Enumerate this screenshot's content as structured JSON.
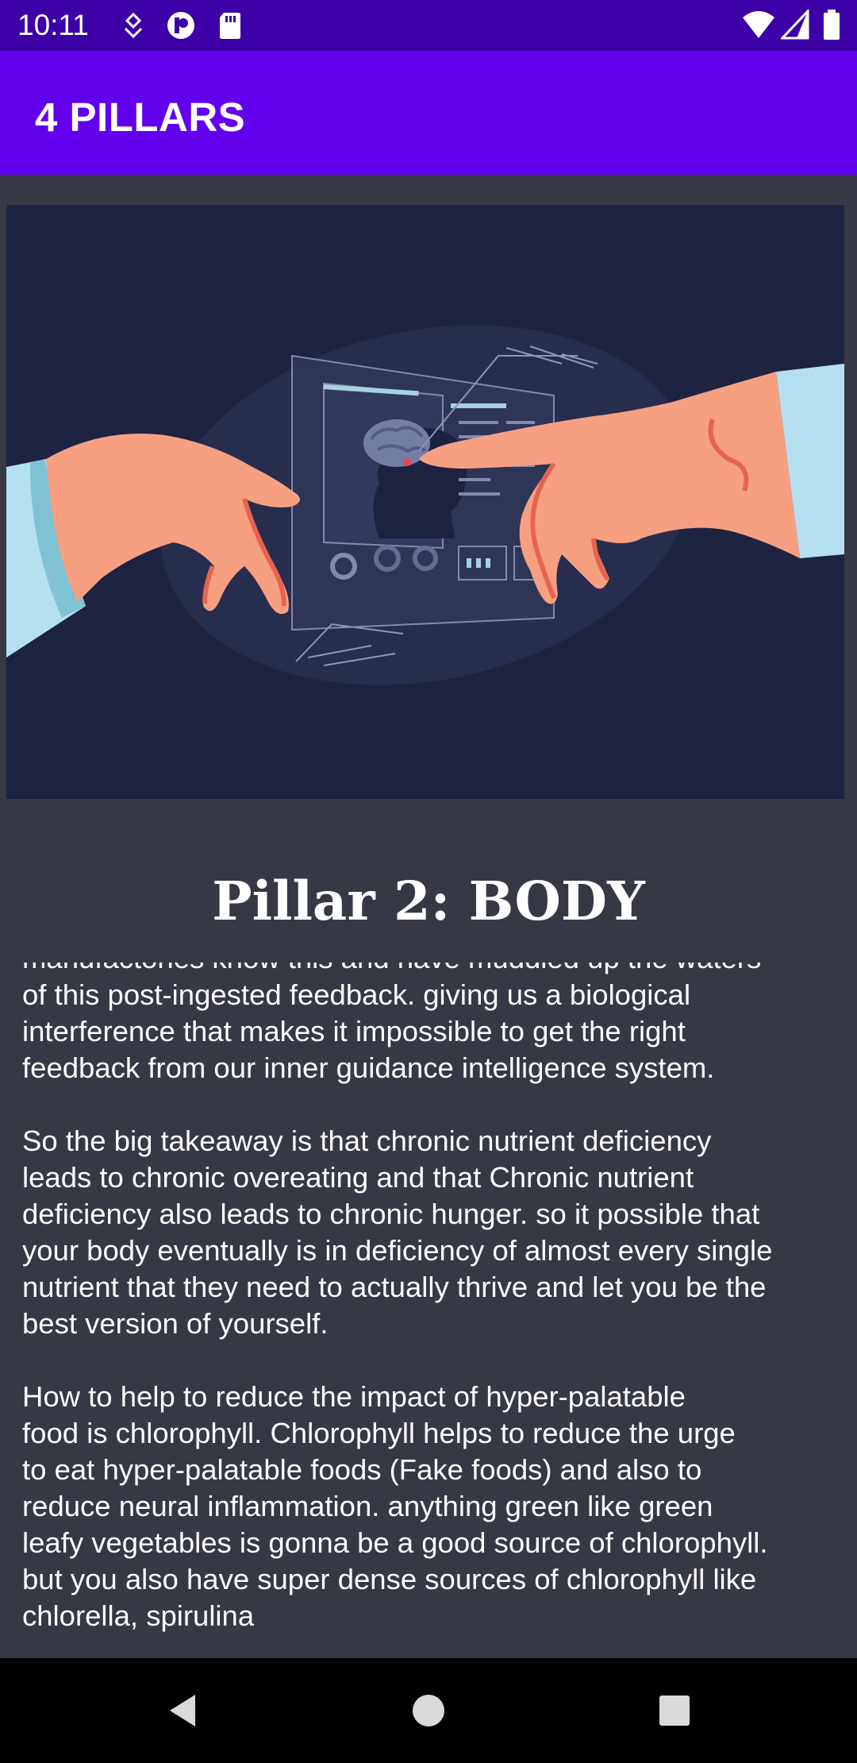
{
  "status_bar": {
    "time": "10:11",
    "left_icons": [
      "debug-icon",
      "pocket-icon",
      "sd-card-icon"
    ],
    "right_icons": [
      "wifi-icon",
      "signal-icon",
      "battery-icon"
    ]
  },
  "app_bar": {
    "title": "4 PILLARS",
    "background": "#6200ee"
  },
  "hero": {
    "description_icon": "hands-touching-brain-screen-illustration"
  },
  "article": {
    "title": "Pillar 2: BODY",
    "paragraphs": [
      "manufactories know this and have muddied up the waters\nof this post-ingested feedback. giving us a biological\ninterference that makes it impossible to get the right\nfeedback from our inner guidance intelligence system.",
      " So the big takeaway is that chronic nutrient deficiency\nleads to chronic overeating and that Chronic nutrient\ndeficiency also leads to chronic hunger. so it possible that\nyour body eventually is in deficiency of almost every single\nnutrient that they need to actually thrive and let you be the\nbest version of yourself.",
      " How to help to reduce the impact of hyper-palatable\nfood is chlorophyll. Chlorophyll helps to reduce the urge\nto eat hyper-palatable foods (Fake foods) and also to\nreduce neural inflammation. anything green like green\nleafy vegetables is gonna be a good source of chlorophyll.\nbut you also have super dense sources of chlorophyll like\nchlorella, spirulina"
    ]
  },
  "nav_bar": {
    "buttons": [
      "back-icon",
      "home-icon",
      "recents-icon"
    ]
  }
}
